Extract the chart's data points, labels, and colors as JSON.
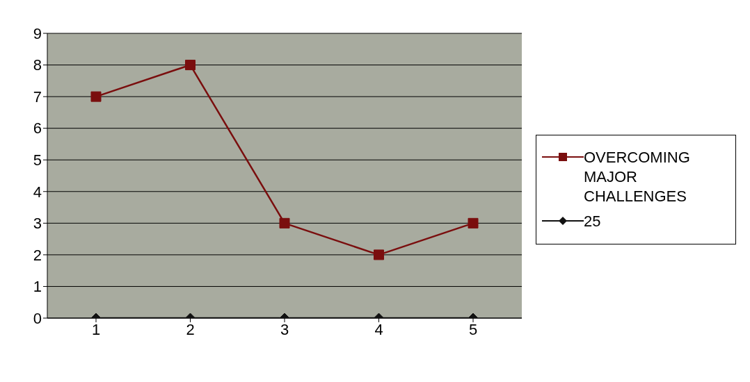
{
  "chart_data": {
    "type": "line",
    "categories": [
      "1",
      "2",
      "3",
      "4",
      "5"
    ],
    "series": [
      {
        "name": "OVERCOMING MAJOR CHALLENGES",
        "color": "#7a0e0e",
        "values": [
          7,
          8,
          3,
          2,
          3
        ],
        "marker": "square"
      },
      {
        "name": "25",
        "color": "#111111",
        "values": [
          0,
          0,
          0,
          0,
          0
        ],
        "marker": "diamond"
      }
    ],
    "ylim": [
      0,
      9
    ],
    "yticks": [
      0,
      1,
      2,
      3,
      4,
      5,
      6,
      7,
      8,
      9
    ],
    "grid": "y",
    "legend": "right"
  }
}
